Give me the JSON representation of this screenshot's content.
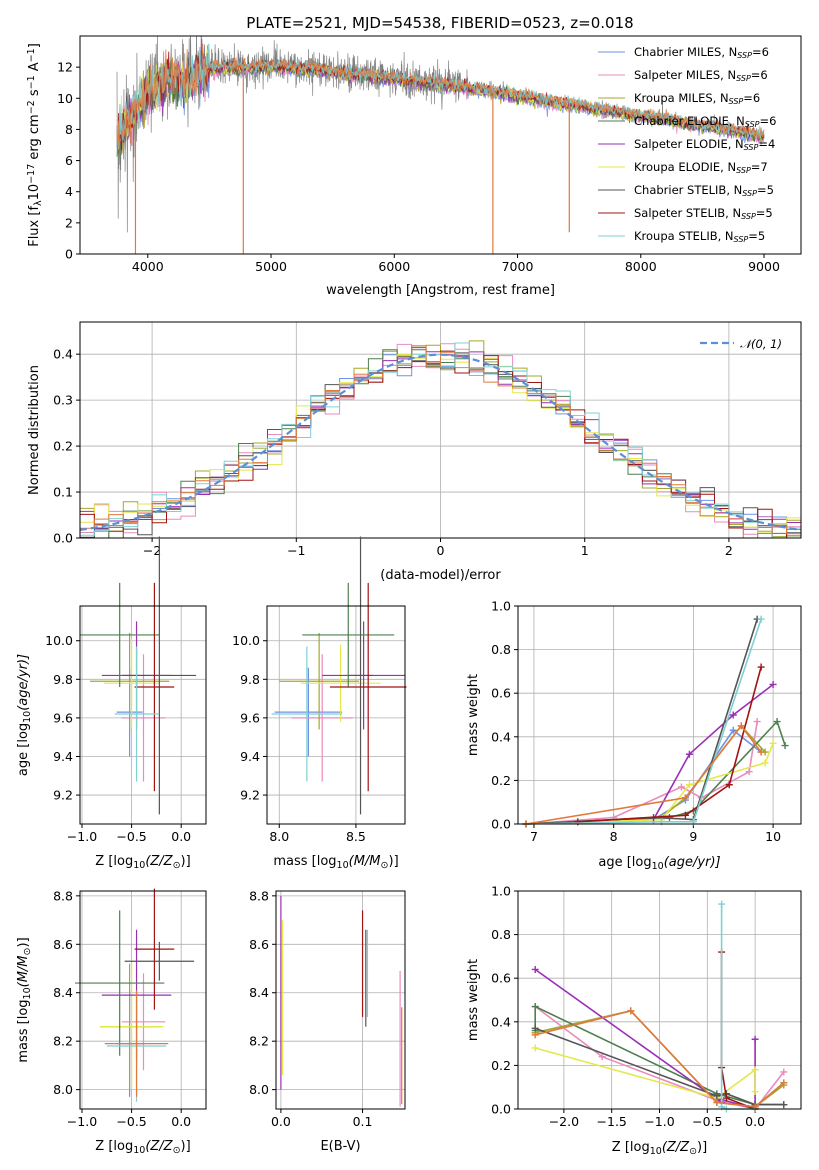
{
  "figure": {
    "title": "PLATE=2521, MJD=54538, FIBERID=0523, z=0.018"
  },
  "colors": {
    "series": [
      "#6f92e6",
      "#e98bbf",
      "#a6a827",
      "#4e7f4e",
      "#9a2fb5",
      "#e4e84b",
      "#555555",
      "#a01414",
      "#7fd0d2"
    ],
    "model_overlay": "#e07a3c",
    "data": "#808080",
    "normal_curve": "#5b8fd8",
    "grid": "#b0b0b0"
  },
  "chart_data": [
    {
      "id": "spectrum",
      "type": "line",
      "title": "PLATE=2521, MJD=54538, FIBERID=0523, z=0.018",
      "xlabel": "wavelength [Angstrom, rest frame]",
      "ylabel_parts": [
        "Flux [f",
        "λ",
        "10",
        "−17",
        " erg cm",
        "−2",
        " s",
        "−1",
        " A",
        "−1",
        "]"
      ],
      "xlim": [
        3450,
        9300
      ],
      "ylim": [
        0,
        14
      ],
      "xticks": [
        "4000",
        "5000",
        "6000",
        "7000",
        "8000",
        "9000"
      ],
      "xtick_values": [
        4000,
        5000,
        6000,
        7000,
        8000,
        9000
      ],
      "yticks": [
        "0",
        "2",
        "4",
        "6",
        "8",
        "10",
        "12"
      ],
      "ytick_values": [
        0,
        2,
        4,
        6,
        8,
        10,
        12
      ],
      "grid": false,
      "legend_placement": "top-right",
      "legend": [
        {
          "name": "Chabrier MILES",
          "n": "6"
        },
        {
          "name": "Salpeter MILES",
          "n": "6"
        },
        {
          "name": "Kroupa MILES",
          "n": "6"
        },
        {
          "name": "Chabrier ELODIE",
          "n": "6"
        },
        {
          "name": "Salpeter ELODIE",
          "n": "4"
        },
        {
          "name": "Kroupa ELODIE",
          "n": "7"
        },
        {
          "name": "Chabrier STELIB",
          "n": "5"
        },
        {
          "name": "Salpeter STELIB",
          "n": "5"
        },
        {
          "name": "Kroupa STELIB",
          "n": "5"
        }
      ],
      "legend_n_label": "N",
      "legend_n_sub": "SSP",
      "continuum_wavelength": [
        3750,
        3900,
        4000,
        4100,
        4200,
        4300,
        4400,
        4600,
        4800,
        5000,
        5200,
        5400,
        5600,
        5800,
        6000,
        6200,
        6400,
        6600,
        6800,
        7000,
        7200,
        7400,
        7600,
        7800,
        8000,
        8200,
        8400,
        8600,
        8800,
        9000
      ],
      "continuum_flux": [
        7.5,
        9.2,
        10.4,
        11.1,
        11.3,
        11.0,
        11.8,
        12.0,
        12.0,
        12.1,
        12.0,
        11.9,
        11.6,
        11.5,
        11.3,
        11.1,
        10.9,
        10.7,
        10.5,
        10.2,
        9.9,
        9.7,
        9.4,
        9.2,
        8.9,
        8.7,
        8.4,
        8.2,
        7.9,
        7.6
      ],
      "model_spikes": [
        {
          "wavelength": 3900,
          "flux": 0
        },
        {
          "wavelength": 4775,
          "flux": 0
        },
        {
          "wavelength": 6800,
          "flux": 0
        },
        {
          "wavelength": 7420,
          "flux": 1.4
        }
      ]
    },
    {
      "id": "residuals",
      "type": "histogram",
      "xlabel": "(data-model)/error",
      "ylabel": "Normed distribution",
      "xlim": [
        -2.5,
        2.5
      ],
      "ylim": [
        0,
        0.47
      ],
      "xticks": [
        "−2",
        "−1",
        "0",
        "1",
        "2"
      ],
      "xtick_values": [
        -2,
        -1,
        0,
        1,
        2
      ],
      "yticks": [
        "0.0",
        "0.1",
        "0.2",
        "0.3",
        "0.4"
      ],
      "ytick_values": [
        0,
        0.1,
        0.2,
        0.3,
        0.4
      ],
      "grid": true,
      "legend_placement": "top-right",
      "legend": [
        "𝒩(0, 1)"
      ],
      "bin_width": 0.1,
      "normal_curve": {
        "mean": 0,
        "sigma": 1
      }
    },
    {
      "id": "age-vs-metallicity",
      "type": "errorbar",
      "xlabel_parts": [
        "Z [log",
        "10",
        "(Z/Z",
        "⊙",
        ")]"
      ],
      "ylabel_parts": [
        "age  [log",
        "10",
        "(age/yr)]"
      ],
      "xlim": [
        -1.02,
        0.25
      ],
      "ylim": [
        9.05,
        10.18
      ],
      "xticks": [
        "−1.0",
        "−0.5",
        "0.0"
      ],
      "xtick_values": [
        -1.0,
        -0.5,
        0.0
      ],
      "yticks": [
        "9.2",
        "9.4",
        "9.6",
        "9.8",
        "10.0"
      ],
      "ytick_values": [
        9.2,
        9.4,
        9.6,
        9.8,
        10.0
      ],
      "grid": true,
      "points": [
        {
          "x": -0.52,
          "y": 9.63,
          "xerr": 0.13,
          "yerr": 0.23,
          "c": 0
        },
        {
          "x": -0.38,
          "y": 9.6,
          "xerr": 0.22,
          "yerr": 0.33,
          "c": 1
        },
        {
          "x": -0.52,
          "y": 9.79,
          "xerr": 0.4,
          "yerr": 0.25,
          "c": 2
        },
        {
          "x": -0.5,
          "y": 9.78,
          "xerr": 0.28,
          "yerr": 0.23,
          "c": 5
        },
        {
          "x": -0.45,
          "y": 9.82,
          "xerr": 0.35,
          "yerr": 0.28,
          "c": 4
        },
        {
          "x": -0.62,
          "y": 10.03,
          "xerr": 0.4,
          "yerr": 0.27,
          "c": 3
        },
        {
          "x": -0.22,
          "y": 9.82,
          "xerr": 0.37,
          "yerr": 0.72,
          "c": 6
        },
        {
          "x": -0.27,
          "y": 9.76,
          "xerr": 0.2,
          "yerr": 0.54,
          "c": 7
        },
        {
          "x": -0.45,
          "y": 9.62,
          "xerr": 0.22,
          "yerr": 0.35,
          "c": 8
        }
      ]
    },
    {
      "id": "age-vs-mass",
      "type": "errorbar",
      "xlabel_parts": [
        "mass [log",
        "10",
        "(M/M",
        "⊙",
        ")]"
      ],
      "ylabel_parts": [],
      "xlim": [
        7.92,
        8.82
      ],
      "ylim": [
        9.05,
        10.18
      ],
      "xticks": [
        "8.0",
        "8.5"
      ],
      "xtick_values": [
        8.0,
        8.5
      ],
      "yticks": [
        "9.2",
        "9.4",
        "9.6",
        "9.8",
        "10.0"
      ],
      "ytick_values": [
        9.2,
        9.4,
        9.6,
        9.8,
        10.0
      ],
      "grid": true,
      "points": [
        {
          "x": 8.19,
          "y": 9.63,
          "xerr": 0.22,
          "yerr": 0.23,
          "c": 0
        },
        {
          "x": 8.28,
          "y": 9.6,
          "xerr": 0.2,
          "yerr": 0.33,
          "c": 1
        },
        {
          "x": 8.26,
          "y": 9.79,
          "xerr": 0.26,
          "yerr": 0.25,
          "c": 2
        },
        {
          "x": 8.4,
          "y": 9.78,
          "xerr": 0.26,
          "yerr": 0.2,
          "c": 5
        },
        {
          "x": 8.55,
          "y": 9.82,
          "xerr": 0.27,
          "yerr": 0.28,
          "c": 4
        },
        {
          "x": 8.45,
          "y": 10.03,
          "xerr": 0.3,
          "yerr": 0.27,
          "c": 3
        },
        {
          "x": 8.53,
          "y": 9.82,
          "xerr": 0.08,
          "yerr": 0.72,
          "c": 6
        },
        {
          "x": 8.58,
          "y": 9.76,
          "xerr": 0.25,
          "yerr": 0.54,
          "c": 7
        },
        {
          "x": 8.18,
          "y": 9.62,
          "xerr": 0.23,
          "yerr": 0.35,
          "c": 8
        }
      ]
    },
    {
      "id": "mass-weight-vs-age",
      "type": "line",
      "xlabel_parts": [
        "age  [log",
        "10",
        "(age/yr)]"
      ],
      "ylabel": "mass weight",
      "xlim": [
        6.8,
        10.35
      ],
      "ylim": [
        0,
        1.0
      ],
      "xticks": [
        "7",
        "8",
        "9",
        "10"
      ],
      "xtick_values": [
        7,
        8,
        9,
        10
      ],
      "yticks": [
        "0.0",
        "0.2",
        "0.4",
        "0.6",
        "0.8",
        "1.0"
      ],
      "ytick_values": [
        0,
        0.2,
        0.4,
        0.6,
        0.8,
        1.0
      ],
      "grid": true,
      "series": [
        {
          "c": 0,
          "x": [
            6.9,
            8.5,
            8.9,
            9.5,
            9.85
          ],
          "y": [
            0.0,
            0.02,
            0.11,
            0.43,
            0.33
          ]
        },
        {
          "c": 1,
          "x": [
            6.9,
            8.0,
            8.85,
            9.1,
            9.7,
            9.8
          ],
          "y": [
            0.0,
            0.03,
            0.17,
            0.12,
            0.24,
            0.47
          ]
        },
        {
          "c": 2,
          "x": [
            6.9,
            8.6,
            8.9,
            9.6,
            9.9
          ],
          "y": [
            0.0,
            0.03,
            0.12,
            0.45,
            0.33
          ]
        },
        {
          "c": 3,
          "x": [
            6.9,
            8.7,
            9.0,
            10.05,
            10.15
          ],
          "y": [
            0.0,
            0.03,
            0.06,
            0.47,
            0.36
          ]
        },
        {
          "c": 4,
          "x": [
            6.9,
            8.5,
            8.95,
            9.5,
            10.0
          ],
          "y": [
            0.0,
            0.02,
            0.32,
            0.5,
            0.64
          ]
        },
        {
          "c": 5,
          "x": [
            6.9,
            8.6,
            8.95,
            9.9,
            10.0
          ],
          "y": [
            0.0,
            0.02,
            0.18,
            0.28,
            0.37
          ]
        },
        {
          "c": 6,
          "x": [
            6.9,
            8.5,
            9.0,
            9.8
          ],
          "y": [
            0.0,
            0.03,
            0.02,
            0.94
          ]
        },
        {
          "c": 7,
          "x": [
            7.55,
            8.9,
            9.45,
            9.85
          ],
          "y": [
            0.01,
            0.04,
            0.18,
            0.72
          ]
        },
        {
          "c": 8,
          "x": [
            6.9,
            8.6,
            9.0,
            9.85
          ],
          "y": [
            0.0,
            0.01,
            0.01,
            0.94
          ]
        },
        {
          "c": 9,
          "x": [
            6.9,
            8.9,
            9.6,
            9.85
          ],
          "y": [
            0.0,
            0.12,
            0.45,
            0.33
          ]
        }
      ]
    },
    {
      "id": "mass-vs-metallicity",
      "type": "errorbar",
      "xlabel_parts": [
        "Z [log",
        "10",
        "(Z/Z",
        "⊙",
        ")]"
      ],
      "ylabel_parts": [
        "mass [log",
        "10",
        "(M/M",
        "⊙",
        ")]"
      ],
      "xlim": [
        -1.02,
        0.25
      ],
      "ylim": [
        7.92,
        8.82
      ],
      "xticks": [
        "−1.0",
        "−0.5",
        "0.0"
      ],
      "xtick_values": [
        -1.0,
        -0.5,
        0.0
      ],
      "yticks": [
        "8.0",
        "8.2",
        "8.4",
        "8.6",
        "8.8"
      ],
      "ytick_values": [
        8.0,
        8.2,
        8.4,
        8.6,
        8.8
      ],
      "grid": true,
      "points": [
        {
          "x": -0.52,
          "y": 8.19,
          "xerr": 0.13,
          "yerr": 0.22,
          "c": 0
        },
        {
          "x": -0.38,
          "y": 8.28,
          "xerr": 0.22,
          "yerr": 0.2,
          "c": 1
        },
        {
          "x": -0.52,
          "y": 8.26,
          "xerr": 0.3,
          "yerr": 0.26,
          "c": 2
        },
        {
          "x": -0.5,
          "y": 8.26,
          "xerr": 0.32,
          "yerr": 0.26,
          "c": 5
        },
        {
          "x": -0.45,
          "y": 8.39,
          "xerr": 0.35,
          "yerr": 0.27,
          "c": 4
        },
        {
          "x": -0.62,
          "y": 8.44,
          "xerr": 0.45,
          "yerr": 0.3,
          "c": 3
        },
        {
          "x": -0.22,
          "y": 8.53,
          "xerr": 0.35,
          "yerr": 0.08,
          "c": 6
        },
        {
          "x": -0.27,
          "y": 8.58,
          "xerr": 0.2,
          "yerr": 0.25,
          "c": 7
        },
        {
          "x": -0.45,
          "y": 8.18,
          "xerr": 0.3,
          "yerr": 0.23,
          "c": 8
        },
        {
          "x": -0.45,
          "y": 8.19,
          "xerr": 0.32,
          "yerr": 0.22,
          "c": 9
        }
      ]
    },
    {
      "id": "mass-vs-extinction",
      "type": "errorbar",
      "xlabel": "E(B-V)",
      "ylabel_parts": [],
      "xlim": [
        -0.006,
        0.152
      ],
      "ylim": [
        7.92,
        8.82
      ],
      "xticks": [
        "0.0",
        "0.1"
      ],
      "xtick_values": [
        0.0,
        0.1
      ],
      "yticks": [
        "8.0",
        "8.2",
        "8.4",
        "8.6",
        "8.8"
      ],
      "ytick_values": [
        8.0,
        8.2,
        8.4,
        8.6,
        8.8
      ],
      "grid": true,
      "points": [
        {
          "x": 0.0,
          "y": 8.4,
          "xerr": 0,
          "yerr": 0.4,
          "c": 4
        },
        {
          "x": 0.002,
          "y": 8.38,
          "xerr": 0,
          "yerr": 0.32,
          "c": 5
        },
        {
          "x": 0.1,
          "y": 8.52,
          "xerr": 0,
          "yerr": 0.22,
          "c": 7
        },
        {
          "x": 0.104,
          "y": 8.46,
          "xerr": 0,
          "yerr": 0.2,
          "c": 6
        },
        {
          "x": 0.106,
          "y": 8.48,
          "xerr": 0,
          "yerr": 0.18,
          "c": 8
        },
        {
          "x": 0.146,
          "y": 8.21,
          "xerr": 0,
          "yerr": 0.28,
          "c": 1
        },
        {
          "x": 0.148,
          "y": 8.14,
          "xerr": 0,
          "yerr": 0.2,
          "c": 9
        }
      ]
    },
    {
      "id": "mass-weight-vs-metallicity",
      "type": "line",
      "xlabel_parts": [
        "Z [log",
        "10",
        "(Z/Z",
        "⊙",
        ")]"
      ],
      "ylabel": "mass weight",
      "xlim": [
        -2.48,
        0.48
      ],
      "ylim": [
        0,
        1.0
      ],
      "xticks": [
        "−2.0",
        "−1.5",
        "−1.0",
        "−0.5",
        "0.0"
      ],
      "xtick_values": [
        -2.0,
        -1.5,
        -1.0,
        -0.5,
        0.0
      ],
      "yticks": [
        "0.0",
        "0.2",
        "0.4",
        "0.6",
        "0.8",
        "1.0"
      ],
      "ytick_values": [
        0,
        0.2,
        0.4,
        0.6,
        0.8,
        1.0
      ],
      "grid": true,
      "series": [
        {
          "c": 0,
          "x": [
            -2.3,
            -1.3,
            -0.4,
            0.0,
            0.3
          ],
          "y": [
            0.35,
            0.45,
            0.03,
            0.01,
            0.12
          ]
        },
        {
          "c": 1,
          "x": [
            -2.3,
            -1.6,
            -0.4,
            0.0,
            0.3
          ],
          "y": [
            0.47,
            0.24,
            0.04,
            0.0,
            0.17
          ]
        },
        {
          "c": 2,
          "x": [
            -2.3,
            -1.3,
            -0.4,
            0.0,
            0.3
          ],
          "y": [
            0.35,
            0.45,
            0.03,
            0.01,
            0.11
          ]
        },
        {
          "c": 3,
          "x": [
            -2.3,
            -2.3,
            -0.4,
            0.0,
            0.3
          ],
          "y": [
            0.36,
            0.47,
            0.07,
            0.02,
            0.02
          ]
        },
        {
          "c": 4,
          "x": [
            -2.3,
            -0.35,
            -0.4,
            0.0,
            0.0
          ],
          "y": [
            0.64,
            0.03,
            0.05,
            0.0,
            0.32
          ]
        },
        {
          "c": 5,
          "x": [
            -2.3,
            -0.4,
            0.0,
            0.0
          ],
          "y": [
            0.28,
            0.05,
            0.18,
            0.08
          ]
        },
        {
          "c": 6,
          "x": [
            -2.3,
            -0.4,
            -0.3,
            0.0,
            0.3
          ],
          "y": [
            0.37,
            0.06,
            0.07,
            0.02,
            0.02
          ]
        },
        {
          "c": 7,
          "x": [
            -0.35,
            -0.35,
            -0.3,
            0.0
          ],
          "y": [
            0.72,
            0.19,
            0.05,
            0.0
          ]
        },
        {
          "c": 8,
          "x": [
            -0.35,
            -0.35,
            -0.3,
            0.0
          ],
          "y": [
            0.94,
            0.01,
            0.0,
            0.0
          ]
        },
        {
          "c": 9,
          "x": [
            -2.3,
            -1.3,
            -0.4,
            0.0,
            0.3
          ],
          "y": [
            0.34,
            0.45,
            0.03,
            0.01,
            0.12
          ]
        }
      ]
    }
  ]
}
